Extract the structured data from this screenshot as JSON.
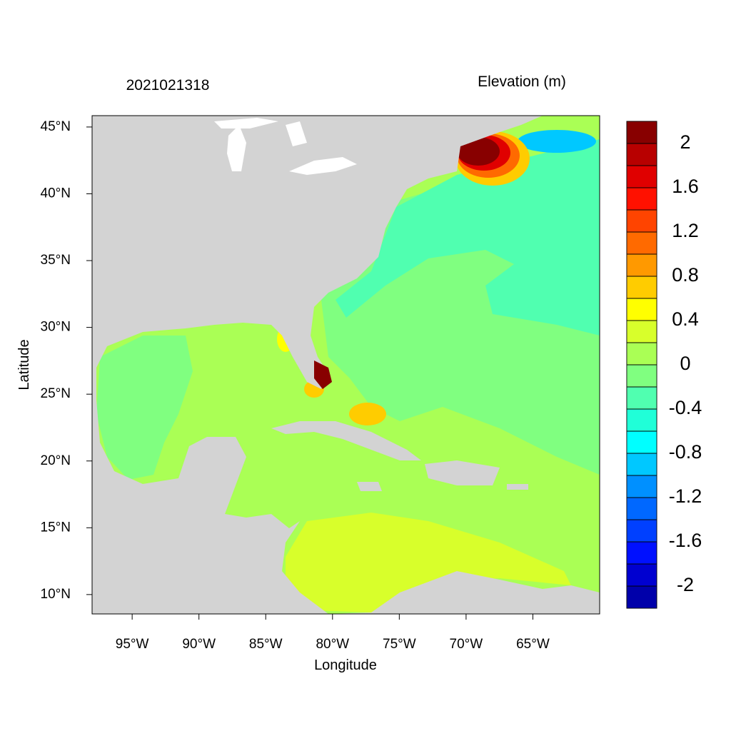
{
  "map": {
    "title_left": "2021021318",
    "title_right": "Elevation (m)",
    "xlabel": "Longitude",
    "ylabel": "Latitude",
    "xlim": [
      -98,
      -60
    ],
    "ylim": [
      8.55,
      45.85
    ],
    "xticks": [
      {
        "value": -95,
        "label": "95°W"
      },
      {
        "value": -90,
        "label": "90°W"
      },
      {
        "value": -85,
        "label": "85°W"
      },
      {
        "value": -80,
        "label": "80°W"
      },
      {
        "value": -75,
        "label": "75°W"
      },
      {
        "value": -70,
        "label": "70°W"
      },
      {
        "value": -65,
        "label": "65°W"
      }
    ],
    "yticks": [
      {
        "value": 10,
        "label": "10°N"
      },
      {
        "value": 15,
        "label": "15°N"
      },
      {
        "value": 20,
        "label": "20°N"
      },
      {
        "value": 25,
        "label": "25°N"
      },
      {
        "value": 30,
        "label": "30°N"
      },
      {
        "value": 35,
        "label": "35°N"
      },
      {
        "value": 40,
        "label": "40°N"
      },
      {
        "value": 45,
        "label": "45°N"
      }
    ],
    "colorbar": {
      "levels": [
        -2,
        -1.8,
        -1.6,
        -1.4,
        -1.2,
        -1,
        -0.8,
        -0.6,
        -0.4,
        -0.2,
        0,
        0.2,
        0.4,
        0.6,
        0.8,
        1,
        1.2,
        1.4,
        1.6,
        1.8,
        2
      ],
      "ticks": [
        -2,
        -1.6,
        -1.2,
        -0.8,
        -0.4,
        0,
        0.4,
        0.8,
        1.2,
        1.6,
        2
      ],
      "colors": [
        "#0000aa",
        "#0000d0",
        "#0010ff",
        "#0040ff",
        "#0068ff",
        "#0090ff",
        "#00c8ff",
        "#00ffff",
        "#20ffd8",
        "#50ffb0",
        "#80ff80",
        "#aaff55",
        "#d8ff2b",
        "#ffff00",
        "#ffcc00",
        "#ff9900",
        "#ff6a00",
        "#ff4400",
        "#ff1100",
        "#e00000",
        "#b80000",
        "#880000"
      ]
    }
  }
}
